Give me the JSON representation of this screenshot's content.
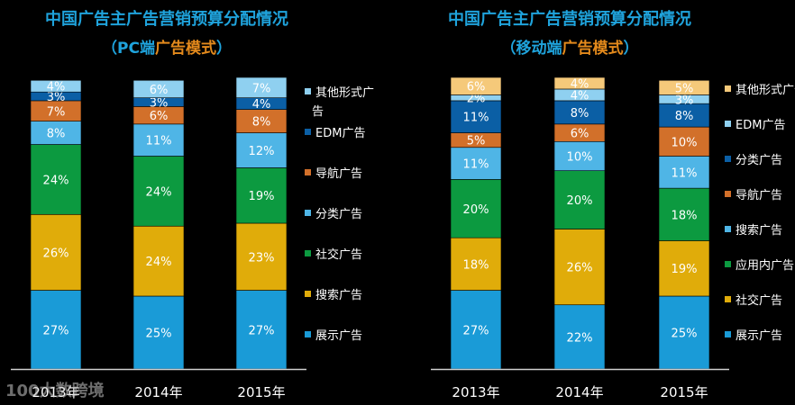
{
  "watermark": "100大数跨境",
  "colors": {
    "title": "#1fa3dc",
    "subtitle_accent": "#e48a1c",
    "axis": "#ffffff",
    "legend_text": "#ffffff",
    "label_text": "#ffffff"
  },
  "chart_data": [
    {
      "type": "stacked-bar",
      "title": "中国广告主广告营销预算分配情况",
      "subtitle_open": "（",
      "subtitle_main": "PC端",
      "subtitle_accent": "广告模式",
      "subtitle_close": "）",
      "categories": [
        "2013年",
        "2014年",
        "2015年"
      ],
      "ylim": [
        0,
        100
      ],
      "series": [
        {
          "name": "展示广告",
          "color": "#1a9bd7",
          "values": [
            27,
            25,
            27
          ]
        },
        {
          "name": "搜索广告",
          "color": "#e0ac0a",
          "values": [
            26,
            24,
            23
          ]
        },
        {
          "name": "社交广告",
          "color": "#0c9a40",
          "values": [
            24,
            24,
            19
          ]
        },
        {
          "name": "分类广告",
          "color": "#4fb5e6",
          "values": [
            8,
            11,
            12
          ]
        },
        {
          "name": "导航广告",
          "color": "#d2702a",
          "values": [
            7,
            6,
            8
          ]
        },
        {
          "name": "EDM广告",
          "color": "#0b5fa5",
          "values": [
            3,
            3,
            4
          ]
        },
        {
          "name": "其他形式广告",
          "color": "#8fd0f0",
          "values": [
            4,
            6,
            7
          ]
        }
      ],
      "legend_order": [
        "其他形式广告",
        "EDM广告",
        "导航广告",
        "分类广告",
        "社交广告",
        "搜索广告",
        "展示广告"
      ]
    },
    {
      "type": "stacked-bar",
      "title": "中国广告主广告营销预算分配情况",
      "subtitle_open": "（",
      "subtitle_main": "移动端",
      "subtitle_accent": "广告模式",
      "subtitle_close": "）",
      "categories": [
        "2013年",
        "2014年",
        "2015年"
      ],
      "ylim": [
        0,
        100
      ],
      "series": [
        {
          "name": "展示广告",
          "color": "#1a9bd7",
          "values": [
            27,
            22,
            25
          ]
        },
        {
          "name": "社交广告",
          "color": "#e0ac0a",
          "values": [
            18,
            26,
            19
          ]
        },
        {
          "name": "应用内广告",
          "color": "#0c9a40",
          "values": [
            20,
            20,
            18
          ]
        },
        {
          "name": "搜索广告",
          "color": "#4fb5e6",
          "values": [
            11,
            10,
            11
          ]
        },
        {
          "name": "导航广告",
          "color": "#d2702a",
          "values": [
            5,
            6,
            10
          ]
        },
        {
          "name": "分类广告",
          "color": "#0b5fa5",
          "values": [
            11,
            8,
            8
          ]
        },
        {
          "name": "EDM广告",
          "color": "#8fd0f0",
          "values": [
            2,
            4,
            3
          ]
        },
        {
          "name": "其他形式广告",
          "color": "#f5c97a",
          "values": [
            6,
            4,
            5
          ]
        }
      ],
      "legend_order": [
        "其他形式广告",
        "EDM广告",
        "分类广告",
        "导航广告",
        "搜索广告",
        "应用内广告",
        "社交广告",
        "展示广告"
      ]
    }
  ]
}
